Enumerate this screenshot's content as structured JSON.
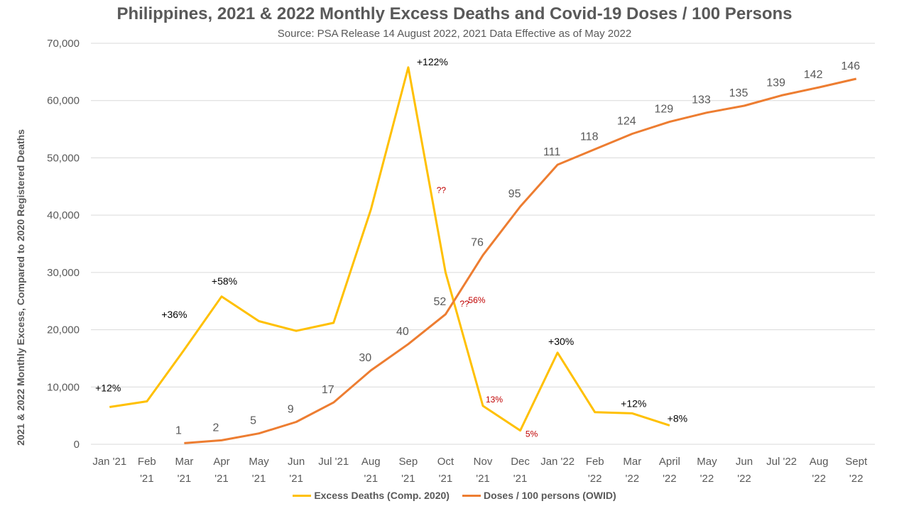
{
  "title": "Philippines, 2021 & 2022 Monthly Excess Deaths and Covid-19 Doses / 100 Persons",
  "subtitle": "Source: PSA Release 14 August 2022, 2021 Data Effective as of May 2022",
  "colors": {
    "excess": "#FFC000",
    "doses": "#ED7D31",
    "grid": "#D9D9D9",
    "text": "#595959",
    "red_annotation": "#C00000"
  },
  "chart_data": {
    "type": "line",
    "title": "Philippines, 2021 & 2022 Monthly Excess Deaths and Covid-19 Doses / 100 Persons",
    "subtitle": "Source: PSA Release 14 August 2022, 2021 Data Effective as of May 2022",
    "xlabel": "",
    "ylabel": "2021 & 2022 Monthly Excess, Compared to 2020 Registered Deaths",
    "ylim": [
      0,
      70000
    ],
    "yticks": [
      "0",
      "10,000",
      "20,000",
      "30,000",
      "40,000",
      "50,000",
      "60,000",
      "70,000"
    ],
    "grid": true,
    "legend_position": "bottom",
    "categories": [
      [
        "Jan '21"
      ],
      [
        "Feb",
        "'21"
      ],
      [
        "Mar",
        "'21"
      ],
      [
        "Apr",
        "'21"
      ],
      [
        "May",
        "'21"
      ],
      [
        "Jun",
        "'21"
      ],
      [
        "Jul '21"
      ],
      [
        "Aug",
        "'21"
      ],
      [
        "Sep",
        "'21"
      ],
      [
        "Oct",
        "'21"
      ],
      [
        "Nov",
        "'21"
      ],
      [
        "Dec",
        "'21"
      ],
      [
        "Jan '22"
      ],
      [
        "Feb",
        "'22"
      ],
      [
        "Mar",
        "'22"
      ],
      [
        "April",
        "'22"
      ],
      [
        "May",
        "'22"
      ],
      [
        "Jun",
        "'22"
      ],
      [
        "Jul '22"
      ],
      [
        "Aug",
        "'22"
      ],
      [
        "Sept",
        "'22"
      ]
    ],
    "series": [
      {
        "name": "Excess Deaths (Comp. 2020)",
        "values": [
          6500,
          7500,
          16500,
          25800,
          21500,
          19800,
          21200,
          41000,
          65800,
          30000,
          6700,
          2400,
          16000,
          5600,
          5400,
          3300,
          null,
          null,
          null,
          null,
          null
        ],
        "labels": [
          "+12%",
          "",
          "+36%",
          "+58%",
          "",
          "",
          "",
          "",
          "+122%",
          "??",
          "??",
          "",
          "+30%",
          "",
          "+12%",
          "+8%",
          "",
          "",
          "",
          "",
          ""
        ],
        "pct_labels": [
          "",
          "",
          "",
          "",
          "",
          "",
          "",
          "",
          "",
          "56%",
          "13%",
          "5%",
          "",
          "",
          "",
          "",
          "",
          "",
          "",
          "",
          ""
        ]
      },
      {
        "name": "Doses / 100 persons (OWID)",
        "values": [
          null,
          null,
          200,
          700,
          1900,
          3900,
          7300,
          12900,
          17500,
          22700,
          33000,
          41500,
          48800,
          51500,
          54200,
          56300,
          57900,
          59100,
          60900,
          62300,
          63800
        ],
        "labels": [
          "",
          "",
          "1",
          "2",
          "5",
          "9",
          "17",
          "30",
          "40",
          "52",
          "76",
          "95",
          "111",
          "118",
          "124",
          "129",
          "133",
          "135",
          "139",
          "142",
          "146"
        ]
      }
    ]
  }
}
